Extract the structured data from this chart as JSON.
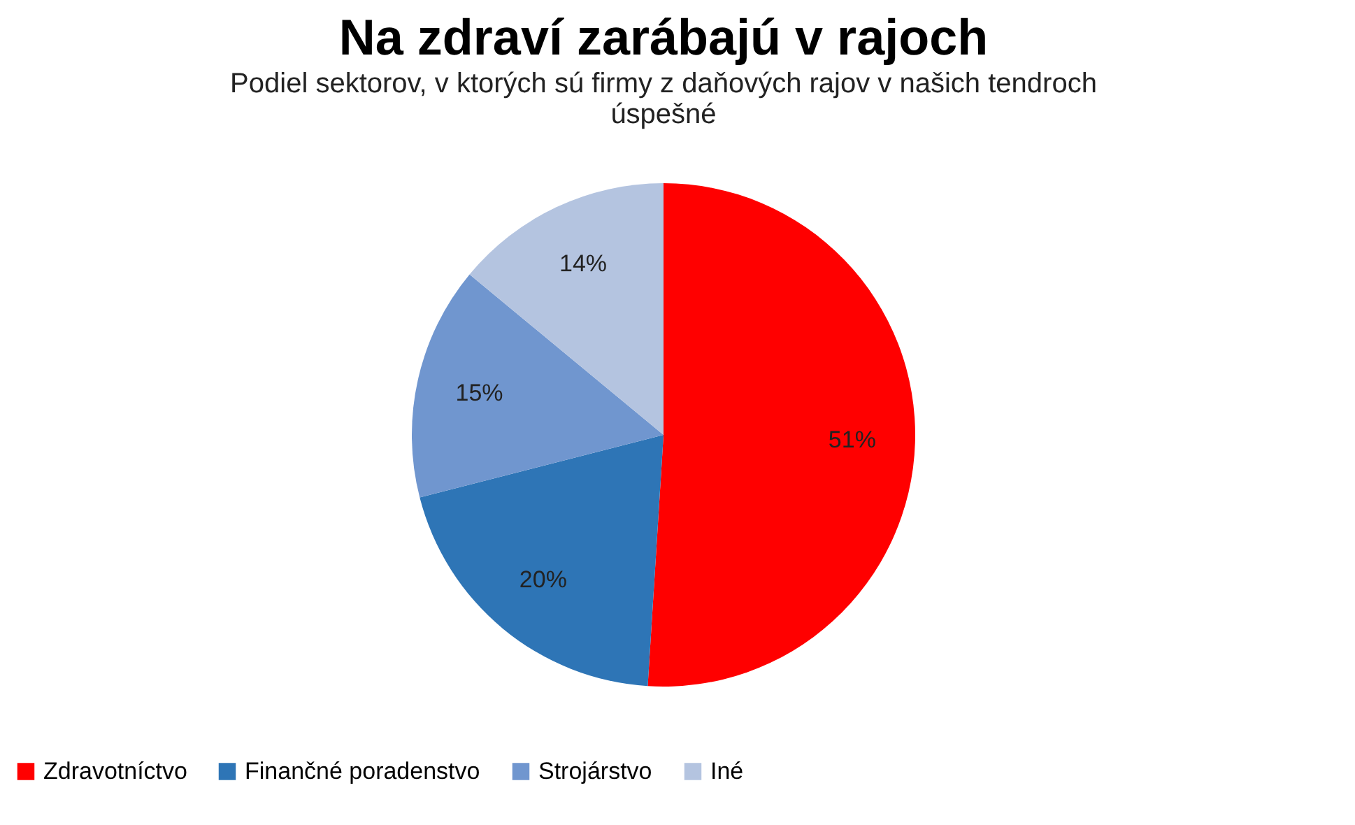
{
  "chart_data": {
    "type": "pie",
    "title": "Na zdraví zarábajú v rajoch",
    "subtitle": "Podiel sektorov, v ktorých sú firmy z daňových rajov v našich tendroch úspešné",
    "categories": [
      "Zdravotníctvo",
      "Finančné poradenstvo",
      "Strojárstvo",
      "Iné"
    ],
    "values": [
      51,
      20,
      15,
      14
    ],
    "colors": [
      "#ff0000",
      "#2e75b6",
      "#7096cf",
      "#b4c4e0"
    ],
    "value_labels": [
      "51%",
      "20%",
      "15%",
      "14%"
    ],
    "legend": "bottom"
  }
}
